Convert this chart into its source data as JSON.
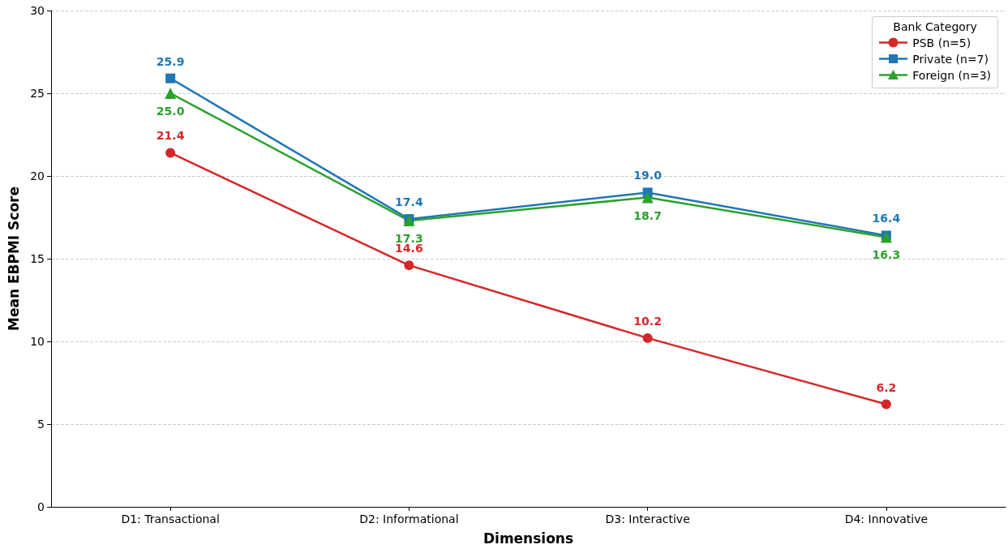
{
  "chart_data": {
    "type": "line",
    "xlabel": "Dimensions",
    "ylabel": "Mean EBPMI Score",
    "legend_title": "Bank Category",
    "categories": [
      "D1: Transactional",
      "D2: Informational",
      "D3: Interactive",
      "D4: Innovative"
    ],
    "series": [
      {
        "name": "PSB (n=5)",
        "color": "#d62728",
        "marker": "circle",
        "values": [
          21.4,
          14.6,
          10.2,
          6.2
        ],
        "value_labels": [
          "21.4",
          "14.6",
          "10.2",
          "6.2"
        ]
      },
      {
        "name": "Private (n=7)",
        "color": "#1f77b4",
        "marker": "square",
        "values": [
          25.9,
          17.4,
          19.0,
          16.4
        ],
        "value_labels": [
          "25.9",
          "17.4",
          "19.0",
          "16.4"
        ]
      },
      {
        "name": "Foreign (n=3)",
        "color": "#2ca02c",
        "marker": "triangle",
        "values": [
          25.0,
          17.3,
          18.7,
          16.3
        ],
        "value_labels": [
          "25.0",
          "17.3",
          "18.7",
          "16.3"
        ]
      }
    ],
    "ylim": [
      0,
      30
    ],
    "yticks": [
      0,
      5,
      10,
      15,
      20,
      25,
      30
    ],
    "grid": "y",
    "legend": "top right",
    "line_style": "solid"
  }
}
